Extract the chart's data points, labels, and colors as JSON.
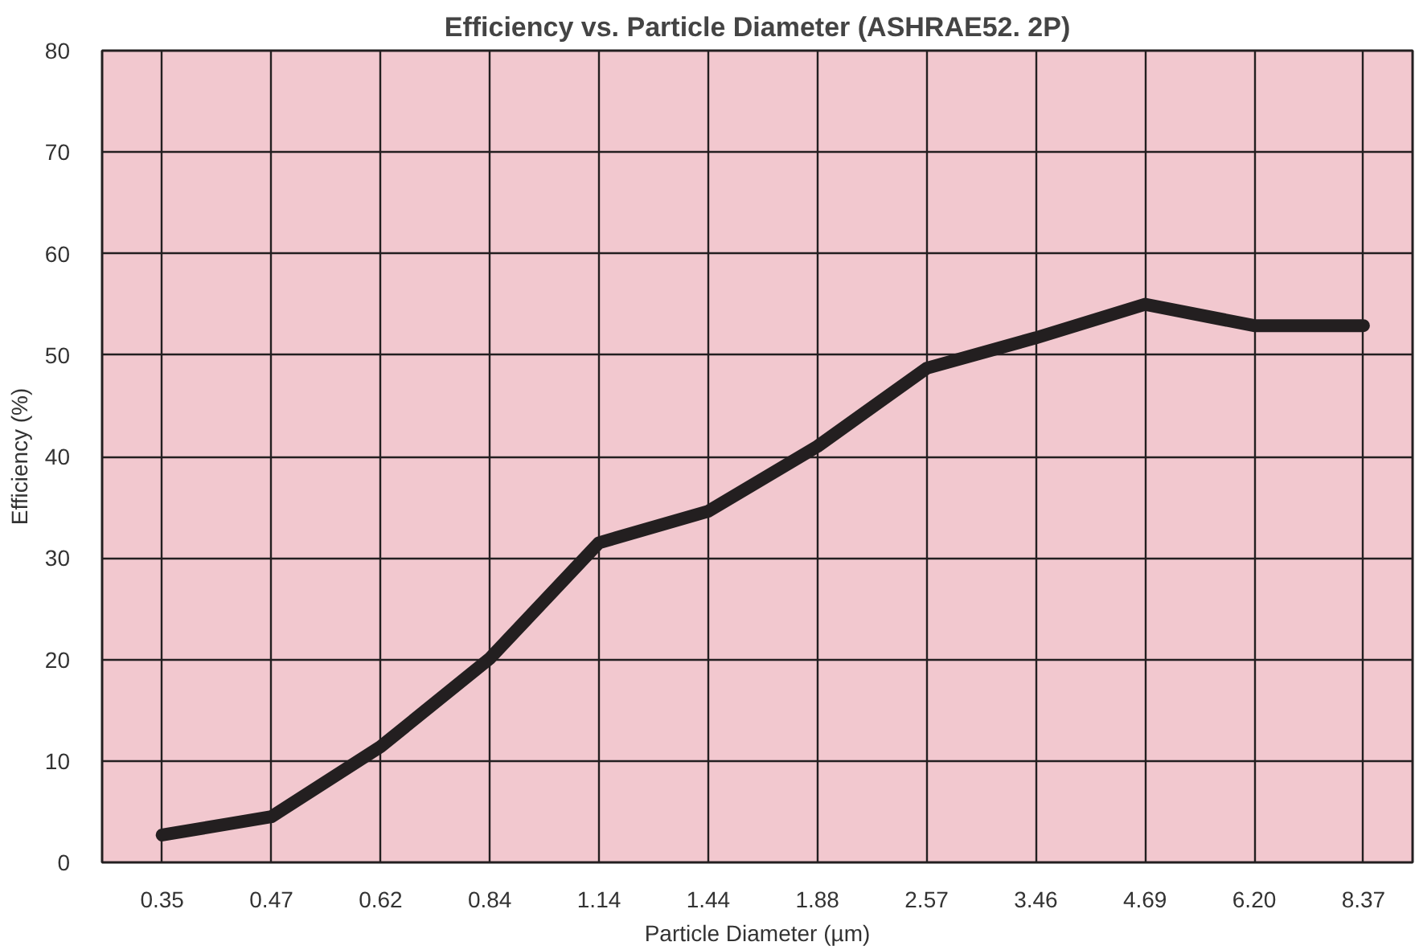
{
  "chart_data": {
    "type": "line",
    "title": "Efficiency vs. Particle Diameter (ASHRAE52. 2P)",
    "xlabel": "Particle Diameter (µm)",
    "ylabel": "Efficiency (%)",
    "categories": [
      "0.35",
      "0.47",
      "0.62",
      "0.84",
      "1.14",
      "1.44",
      "1.88",
      "2.57",
      "3.46",
      "4.69",
      "6.20",
      "8.37"
    ],
    "series": [
      {
        "color": "#231f20",
        "values": [
          2.7,
          4.5,
          11.4,
          20.1,
          31.5,
          34.6,
          41.0,
          48.7,
          51.7,
          55.0,
          52.9,
          52.9
        ]
      }
    ],
    "ylim": [
      0,
      80
    ],
    "yticks": [
      0,
      10,
      20,
      30,
      40,
      50,
      60,
      70,
      80
    ],
    "grid": true,
    "line_style": "solid"
  }
}
